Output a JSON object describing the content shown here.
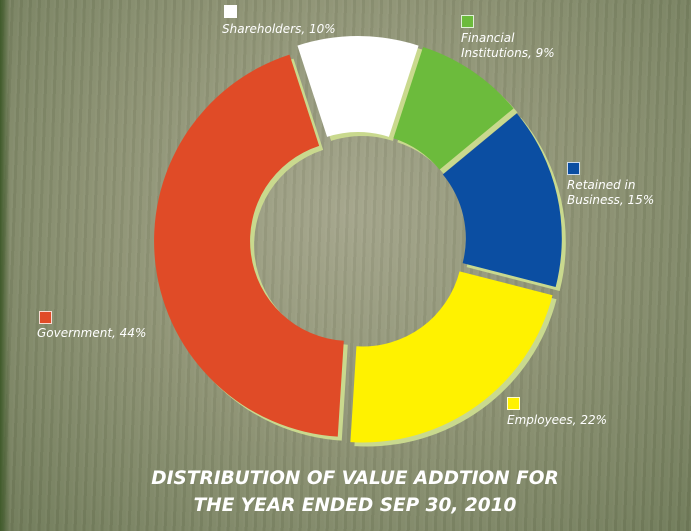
{
  "chart_data": {
    "type": "donut",
    "title": "DISTRIBUTION OF VALUE ADDTION FOR THE YEAR ENDED SEP 30, 2010",
    "values": [
      10,
      9,
      15,
      22,
      44
    ],
    "value_labels": [
      "Shareholders, 10%",
      "Financial Institutions, 9%",
      "Retained in Business, 15%",
      "Employees, 22%",
      "Government, 44%"
    ],
    "colors": [
      "#ffffff",
      "#6cbb3c",
      "#0b4ea2",
      "#fff200",
      "#e04b27"
    ]
  }
}
